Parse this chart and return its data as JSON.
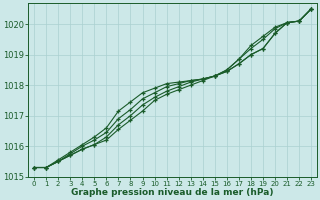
{
  "x": [
    0,
    1,
    2,
    3,
    4,
    5,
    6,
    7,
    8,
    9,
    10,
    11,
    12,
    13,
    14,
    15,
    16,
    17,
    18,
    19,
    20,
    21,
    22,
    23
  ],
  "line1": [
    1015.3,
    1015.3,
    1015.5,
    1015.7,
    1015.9,
    1016.05,
    1016.2,
    1016.55,
    1016.85,
    1017.15,
    1017.5,
    1017.7,
    1017.85,
    1018.0,
    1018.15,
    1018.3,
    1018.45,
    1018.7,
    1019.0,
    1019.2,
    1019.7,
    1020.05,
    1020.1,
    1020.5
  ],
  "line2": [
    1015.3,
    1015.3,
    1015.5,
    1015.7,
    1015.9,
    1016.05,
    1016.3,
    1016.7,
    1017.0,
    1017.35,
    1017.6,
    1017.8,
    1017.95,
    1018.1,
    1018.2,
    1018.3,
    1018.45,
    1018.7,
    1019.0,
    1019.2,
    1019.7,
    1020.05,
    1020.1,
    1020.5
  ],
  "line3": [
    1015.3,
    1015.3,
    1015.5,
    1015.75,
    1016.0,
    1016.2,
    1016.45,
    1016.9,
    1017.2,
    1017.55,
    1017.75,
    1017.95,
    1018.05,
    1018.15,
    1018.2,
    1018.3,
    1018.5,
    1018.85,
    1019.2,
    1019.5,
    1019.85,
    1020.05,
    1020.1,
    1020.5
  ],
  "line4": [
    1015.3,
    1015.3,
    1015.55,
    1015.8,
    1016.05,
    1016.3,
    1016.6,
    1017.15,
    1017.45,
    1017.75,
    1017.9,
    1018.05,
    1018.1,
    1018.15,
    1018.2,
    1018.3,
    1018.5,
    1018.85,
    1019.3,
    1019.6,
    1019.9,
    1020.05,
    1020.1,
    1020.5
  ],
  "line_color": "#1a5c2a",
  "bg_color": "#cce8e8",
  "grid_color": "#aad0d0",
  "xlabel": "Graphe pression niveau de la mer (hPa)",
  "xlabel_color": "#1a5c2a",
  "tick_color": "#1a5c2a",
  "ylim": [
    1015.0,
    1020.7
  ],
  "xlim": [
    -0.5,
    23.5
  ],
  "yticks": [
    1015,
    1016,
    1017,
    1018,
    1019,
    1020
  ],
  "xticks": [
    0,
    1,
    2,
    3,
    4,
    5,
    6,
    7,
    8,
    9,
    10,
    11,
    12,
    13,
    14,
    15,
    16,
    17,
    18,
    19,
    20,
    21,
    22,
    23
  ]
}
